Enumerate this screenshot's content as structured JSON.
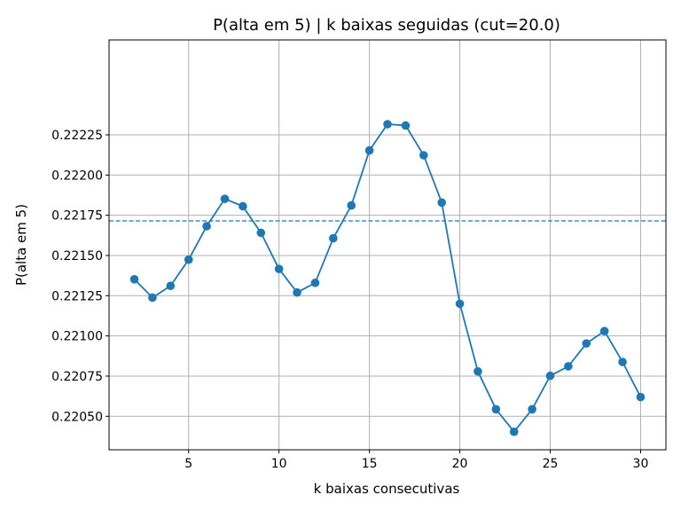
{
  "chart_data": {
    "type": "line",
    "title": "P(alta em 5) | k baixas seguidas  (cut=20.0)",
    "xlabel": "k baixas consecutivas",
    "ylabel": "P(alta em 5)",
    "xlim": [
      0.6,
      31.4
    ],
    "ylim": [
      0.220292,
      0.22284
    ],
    "xticks": [
      5,
      10,
      15,
      20,
      25,
      30
    ],
    "xtick_labels": [
      "5",
      "10",
      "15",
      "20",
      "25",
      "30"
    ],
    "yticks": [
      0.2205,
      0.22075,
      0.221,
      0.22125,
      0.2215,
      0.22175,
      0.222,
      0.22225
    ],
    "ytick_labels": [
      "0.22050",
      "0.22075",
      "0.22100",
      "0.22125",
      "0.22150",
      "0.22175",
      "0.22200",
      "0.22225"
    ],
    "grid": true,
    "reference_line": {
      "y": 0.221715,
      "style": "dashed",
      "color": "#1f77b4"
    },
    "series": [
      {
        "color": "#1f77b4",
        "marker": "circle",
        "x": [
          2,
          3,
          4,
          5,
          6,
          7,
          8,
          9,
          10,
          11,
          12,
          13,
          14,
          15,
          16,
          17,
          18,
          19,
          20,
          21,
          22,
          23,
          24,
          25,
          26,
          27,
          28,
          29,
          30
        ],
        "y": [
          0.221352,
          0.221238,
          0.221311,
          0.221474,
          0.221682,
          0.221852,
          0.221806,
          0.221641,
          0.221416,
          0.22127,
          0.22133,
          0.221607,
          0.221811,
          0.222153,
          0.222316,
          0.222308,
          0.222123,
          0.221829,
          0.2212,
          0.220779,
          0.220544,
          0.220404,
          0.220544,
          0.220752,
          0.220811,
          0.220953,
          0.22103,
          0.220838,
          0.22062
        ]
      }
    ]
  }
}
